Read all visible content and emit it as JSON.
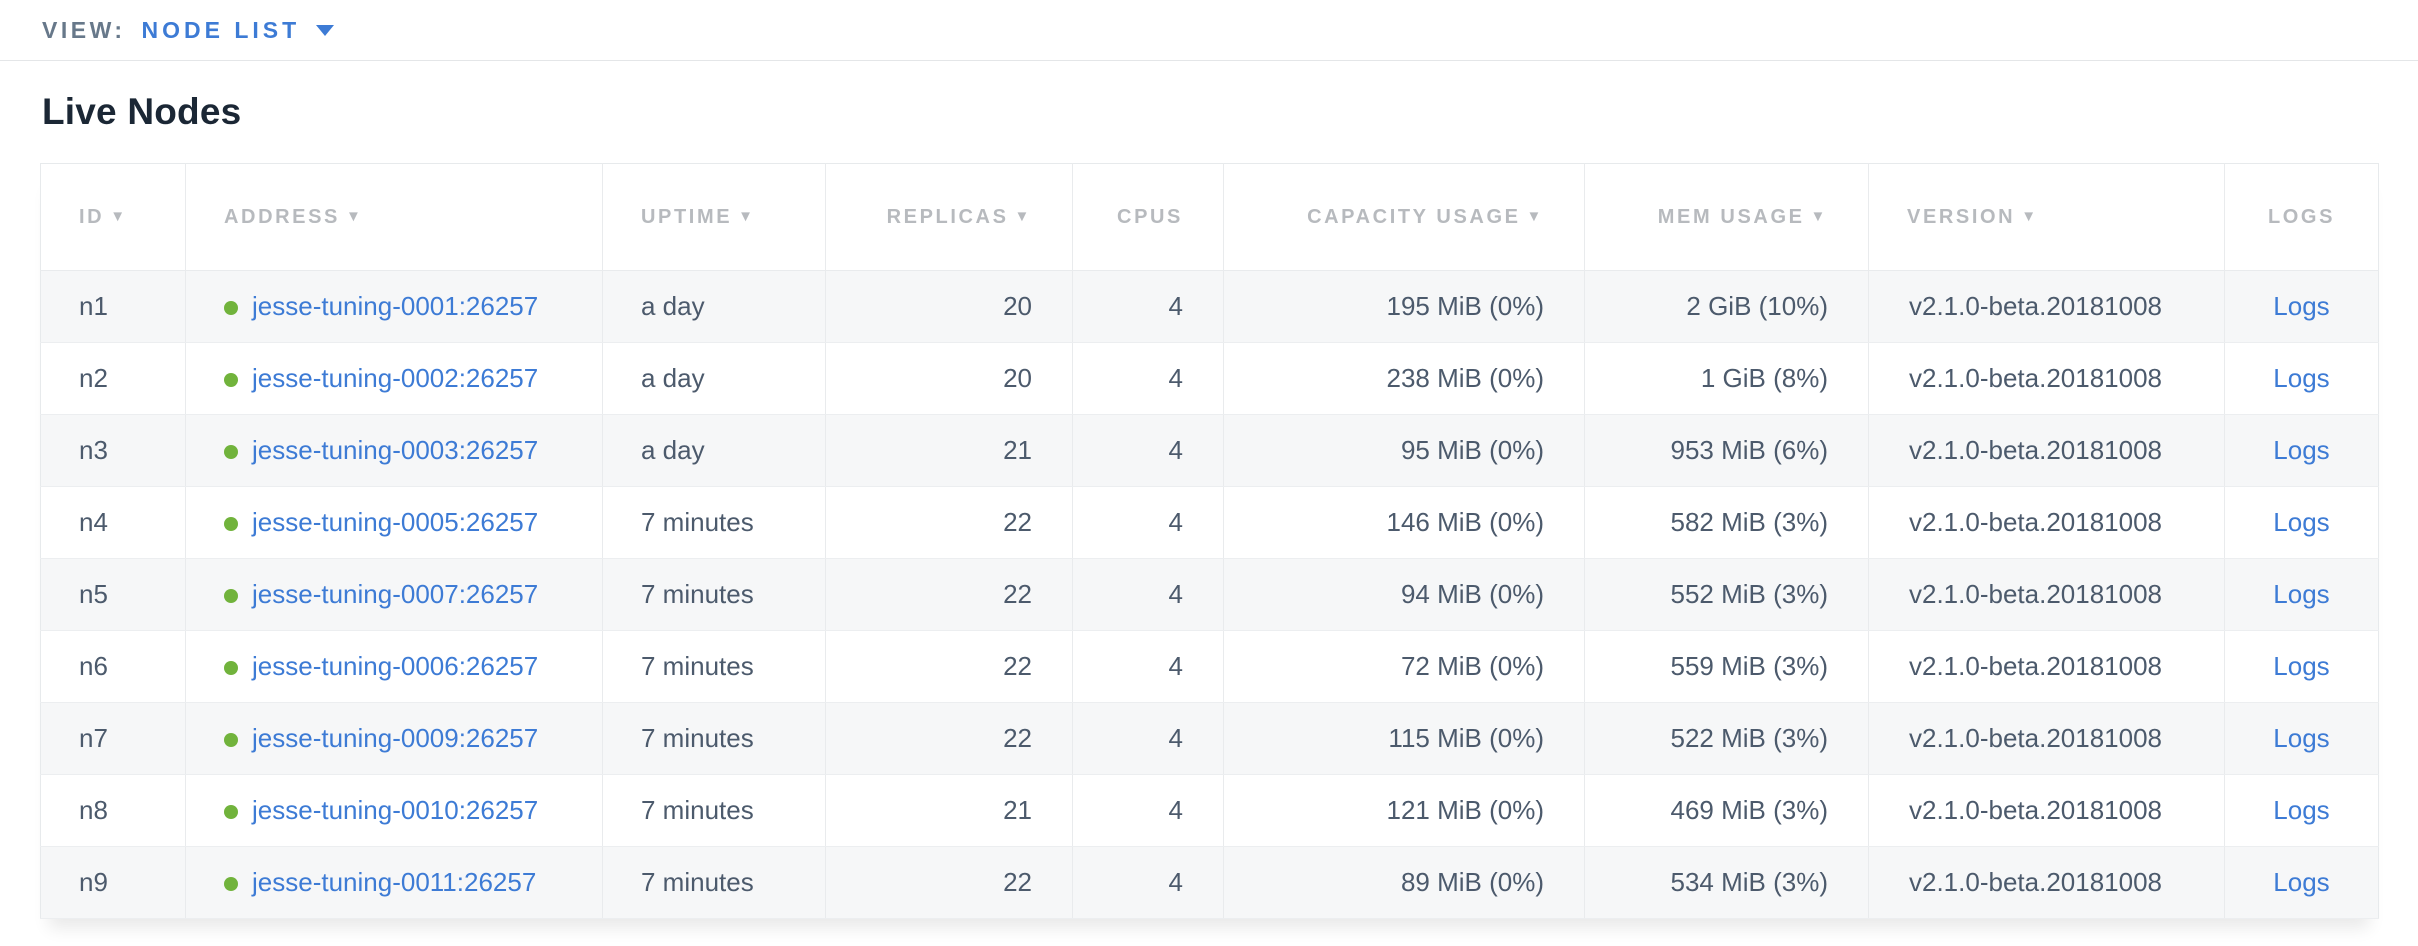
{
  "view_bar": {
    "label": "VIEW:",
    "selected": "NODE LIST",
    "dropdown_icon": "chevron-down-icon"
  },
  "page": {
    "title": "Live Nodes"
  },
  "colors": {
    "link_blue": "#3d7bd5",
    "status_green": "#71b33c",
    "header_gray": "#b7babe",
    "row_text": "#4c5a6c",
    "row_alt_bg": "#f6f7f8"
  },
  "table": {
    "columns": [
      {
        "label": "ID",
        "sort_arrow": true
      },
      {
        "label": "ADDRESS",
        "sort_arrow": true
      },
      {
        "label": "UPTIME",
        "sort_arrow": true
      },
      {
        "label": "REPLICAS",
        "sort_arrow": true
      },
      {
        "label": "CPUS",
        "sort_arrow": false
      },
      {
        "label": "CAPACITY USAGE",
        "sort_arrow": true
      },
      {
        "label": "MEM USAGE",
        "sort_arrow": true
      },
      {
        "label": "VERSION",
        "sort_arrow": true
      },
      {
        "label": "LOGS",
        "sort_arrow": false
      }
    ],
    "rows": [
      {
        "id": "n1",
        "status_icon": "green-dot-icon",
        "address": "jesse-tuning-0001:26257",
        "uptime": "a day",
        "replicas": "20",
        "cpus": "4",
        "capacity": "195 MiB (0%)",
        "mem": "2 GiB (10%)",
        "version": "v2.1.0-beta.20181008",
        "logs": "Logs"
      },
      {
        "id": "n2",
        "status_icon": "green-dot-icon",
        "address": "jesse-tuning-0002:26257",
        "uptime": "a day",
        "replicas": "20",
        "cpus": "4",
        "capacity": "238 MiB (0%)",
        "mem": "1 GiB (8%)",
        "version": "v2.1.0-beta.20181008",
        "logs": "Logs"
      },
      {
        "id": "n3",
        "status_icon": "green-dot-icon",
        "address": "jesse-tuning-0003:26257",
        "uptime": "a day",
        "replicas": "21",
        "cpus": "4",
        "capacity": "95 MiB (0%)",
        "mem": "953 MiB (6%)",
        "version": "v2.1.0-beta.20181008",
        "logs": "Logs"
      },
      {
        "id": "n4",
        "status_icon": "green-dot-icon",
        "address": "jesse-tuning-0005:26257",
        "uptime": "7 minutes",
        "replicas": "22",
        "cpus": "4",
        "capacity": "146 MiB (0%)",
        "mem": "582 MiB (3%)",
        "version": "v2.1.0-beta.20181008",
        "logs": "Logs"
      },
      {
        "id": "n5",
        "status_icon": "green-dot-icon",
        "address": "jesse-tuning-0007:26257",
        "uptime": "7 minutes",
        "replicas": "22",
        "cpus": "4",
        "capacity": "94 MiB (0%)",
        "mem": "552 MiB (3%)",
        "version": "v2.1.0-beta.20181008",
        "logs": "Logs"
      },
      {
        "id": "n6",
        "status_icon": "green-dot-icon",
        "address": "jesse-tuning-0006:26257",
        "uptime": "7 minutes",
        "replicas": "22",
        "cpus": "4",
        "capacity": "72 MiB (0%)",
        "mem": "559 MiB (3%)",
        "version": "v2.1.0-beta.20181008",
        "logs": "Logs"
      },
      {
        "id": "n7",
        "status_icon": "green-dot-icon",
        "address": "jesse-tuning-0009:26257",
        "uptime": "7 minutes",
        "replicas": "22",
        "cpus": "4",
        "capacity": "115 MiB (0%)",
        "mem": "522 MiB (3%)",
        "version": "v2.1.0-beta.20181008",
        "logs": "Logs"
      },
      {
        "id": "n8",
        "status_icon": "green-dot-icon",
        "address": "jesse-tuning-0010:26257",
        "uptime": "7 minutes",
        "replicas": "21",
        "cpus": "4",
        "capacity": "121 MiB (0%)",
        "mem": "469 MiB (3%)",
        "version": "v2.1.0-beta.20181008",
        "logs": "Logs"
      },
      {
        "id": "n9",
        "status_icon": "green-dot-icon",
        "address": "jesse-tuning-0011:26257",
        "uptime": "7 minutes",
        "replicas": "22",
        "cpus": "4",
        "capacity": "89 MiB (0%)",
        "mem": "534 MiB (3%)",
        "version": "v2.1.0-beta.20181008",
        "logs": "Logs"
      }
    ]
  }
}
